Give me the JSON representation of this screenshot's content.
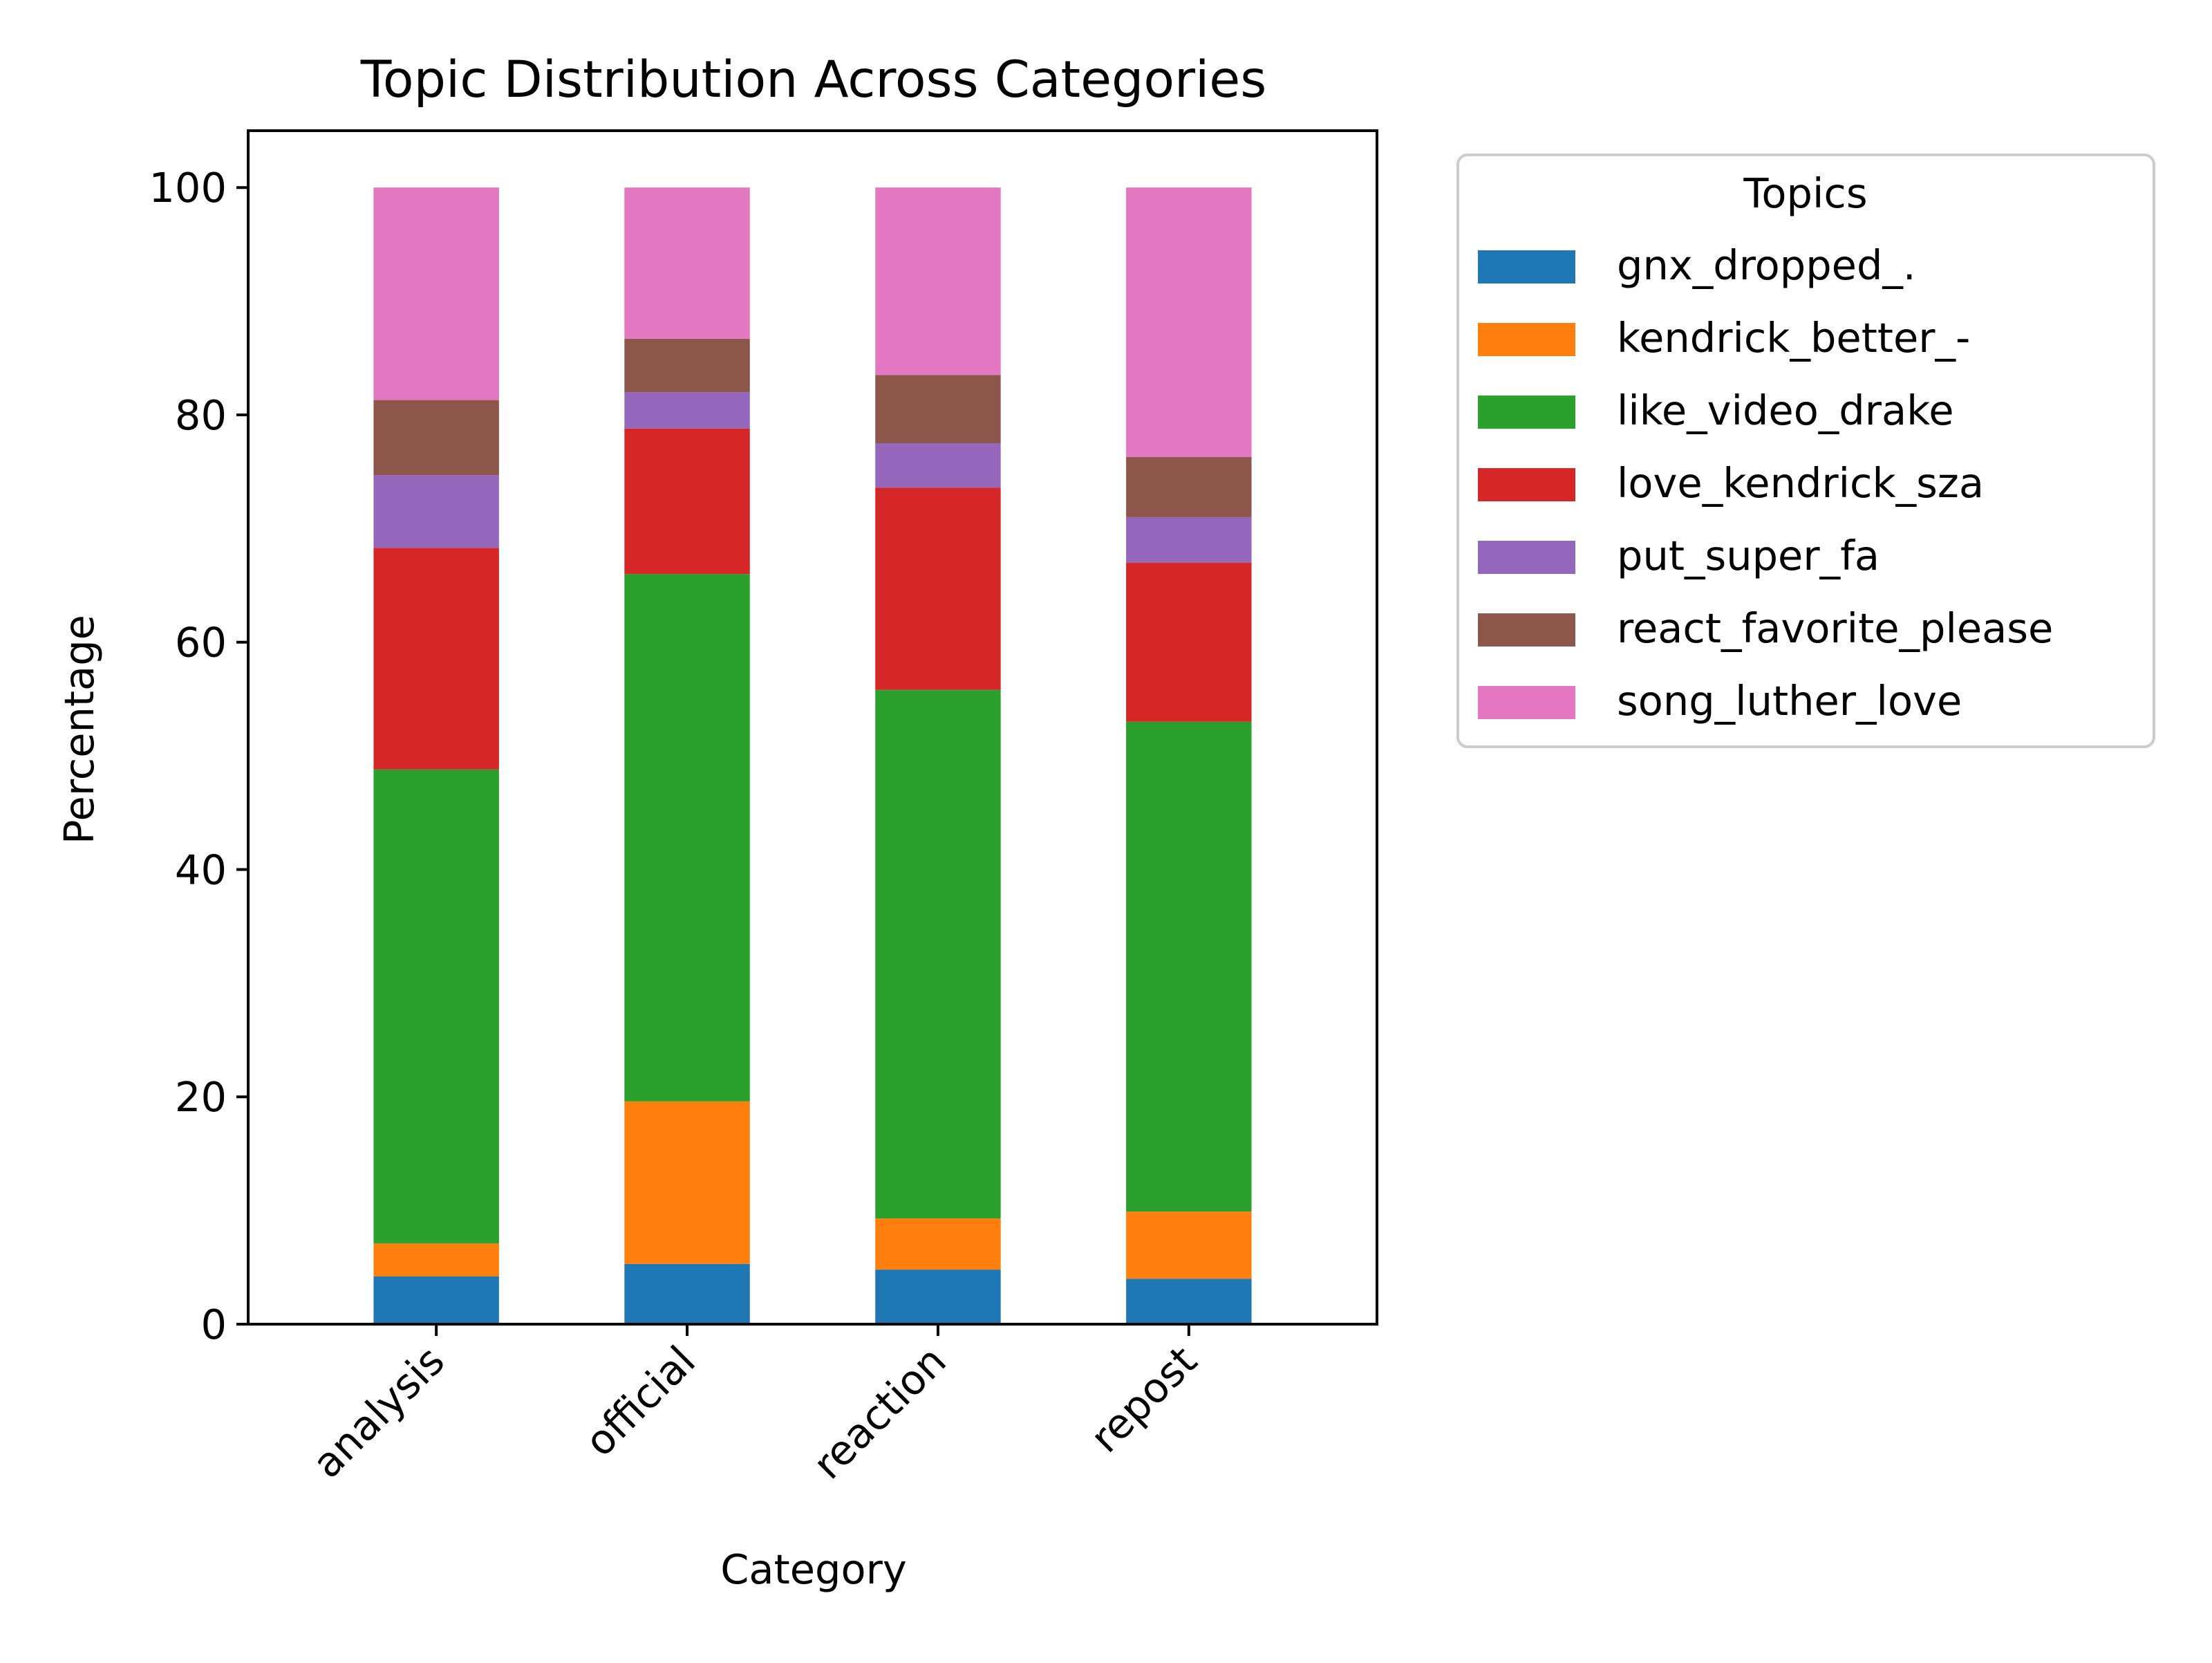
{
  "chart_data": {
    "type": "bar",
    "stacked": true,
    "title": "Topic Distribution Across Categories",
    "xlabel": "Category",
    "ylabel": "Percentage",
    "ylim": [
      0,
      105
    ],
    "yticks": [
      0,
      20,
      40,
      60,
      80,
      100
    ],
    "grid": false,
    "legend": {
      "title": "Topics",
      "placement": "outside-right-top"
    },
    "categories": [
      "analysis",
      "official",
      "reaction",
      "repost"
    ],
    "series": [
      {
        "name": "gnx_dropped_.",
        "color": "#1f77b4",
        "values": [
          4.2,
          5.3,
          4.8,
          4.0
        ]
      },
      {
        "name": "kendrick_better_-",
        "color": "#ff7f0e",
        "values": [
          2.9,
          14.3,
          4.5,
          5.9
        ]
      },
      {
        "name": "like_video_drake",
        "color": "#2ca02c",
        "values": [
          41.7,
          46.4,
          46.5,
          43.1
        ]
      },
      {
        "name": "love_kendrick_sza",
        "color": "#d62728",
        "values": [
          19.5,
          12.8,
          17.8,
          14.0
        ]
      },
      {
        "name": "put_super_fa",
        "color": "#9467bd",
        "values": [
          6.4,
          3.2,
          3.9,
          4.0
        ]
      },
      {
        "name": "react_favorite_please",
        "color": "#8c564b",
        "values": [
          6.6,
          4.7,
          6.0,
          5.3
        ]
      },
      {
        "name": "song_luther_love",
        "color": "#e377c2",
        "values": [
          18.7,
          13.3,
          16.5,
          23.7
        ]
      }
    ]
  }
}
